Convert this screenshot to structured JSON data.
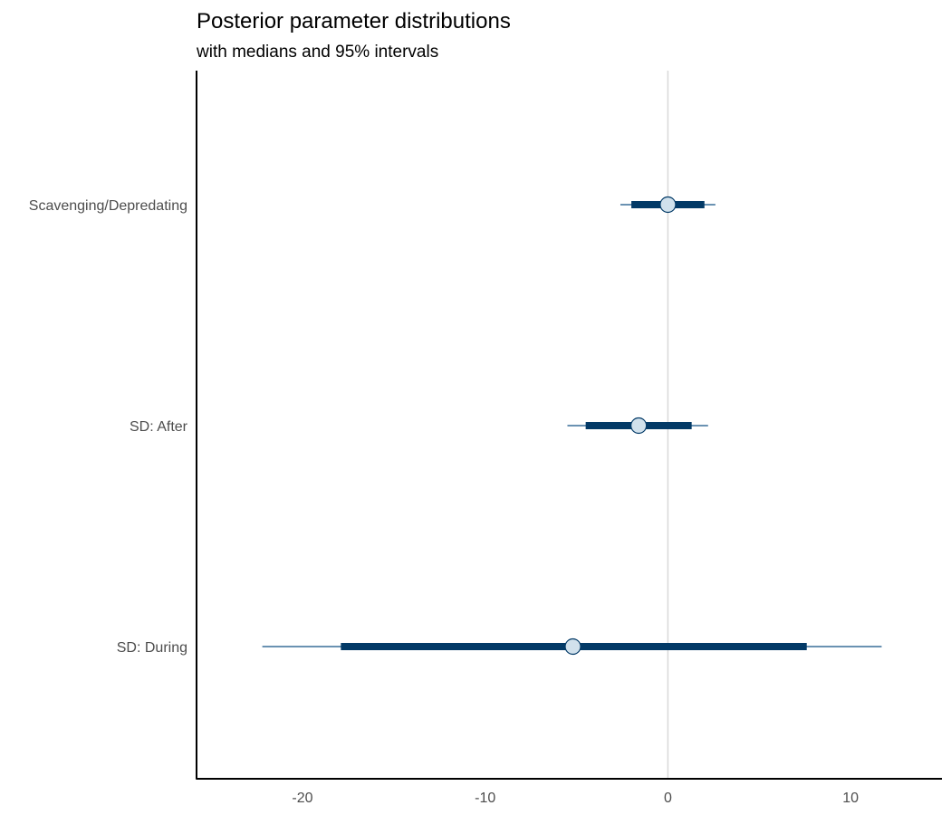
{
  "chart_data": {
    "type": "interval",
    "title": "Posterior parameter distributions",
    "subtitle": "with medians and 95% intervals",
    "xlabel": "",
    "ylabel": "",
    "xlim": [
      -25.8,
      15
    ],
    "xticks": [
      -20,
      -10,
      0,
      10
    ],
    "xtick_labels": [
      "-20",
      "-10",
      "0",
      "10"
    ],
    "reference_line": 0,
    "grid": false,
    "parameters": [
      {
        "label": "Scavenging/Depredating",
        "median": 0.0,
        "inner": [
          -2.0,
          2.0
        ],
        "outer": [
          -2.6,
          2.6
        ]
      },
      {
        "label": "SD: After",
        "median": -1.6,
        "inner": [
          -4.5,
          1.3
        ],
        "outer": [
          -5.5,
          2.2
        ]
      },
      {
        "label": "SD: During",
        "median": -5.2,
        "inner": [
          -17.9,
          7.6
        ],
        "outer": [
          -22.2,
          11.7
        ]
      }
    ],
    "colors": {
      "inner_interval": "#033a67",
      "outer_interval": "#6a92b2",
      "point_fill": "#d1e1ec",
      "point_stroke": "#033a67",
      "reference_line": "#d9d9d9",
      "axis": "#000000"
    }
  }
}
